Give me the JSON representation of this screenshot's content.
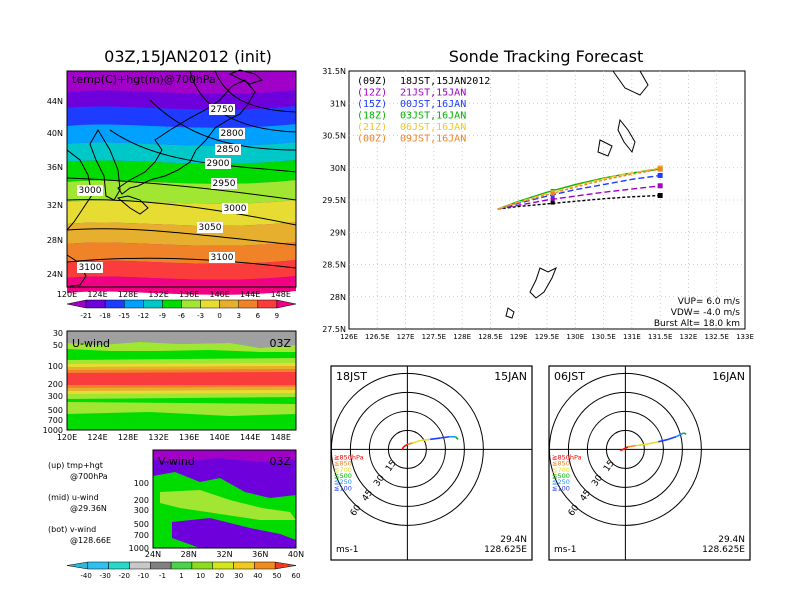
{
  "palette": {
    "temp": [
      "#a000c8",
      "#6e00dc",
      "#1e3cff",
      "#00a0ff",
      "#00c8c8",
      "#00dc00",
      "#a0e632",
      "#e6dc32",
      "#e6af2d",
      "#f08228",
      "#fa3c3c",
      "#f00082"
    ],
    "wind": [
      "#00c8c8",
      "#00dc00",
      "#a0e632",
      "#e6dc32",
      "#e6af2d",
      "#f08228",
      "#fa3c3c"
    ],
    "windcb": [
      "#2cb8d8",
      "#30c0f0",
      "#28d8c8",
      "#c8c8c8",
      "#808080",
      "#4ad24a",
      "#8cdc1e",
      "#d2e61e",
      "#f0c81e",
      "#f08c1e",
      "#f03c1e"
    ]
  },
  "panels": {
    "map": {
      "title": "03Z,15JAN2012 (init)",
      "label": "temp(C)+hgt(m)@700hPa",
      "lat_ticks": [
        "44N",
        "40N",
        "36N",
        "32N",
        "28N",
        "24N"
      ],
      "lon_ticks": [
        "120E",
        "124E",
        "128E",
        "132E",
        "136E",
        "140E",
        "144E",
        "148E"
      ],
      "contours": [
        "2750",
        "2800",
        "2850",
        "2900",
        "2950",
        "3000",
        "3000",
        "3050",
        "3100",
        "3100"
      ],
      "colorbar": [
        "-21",
        "-18",
        "-15",
        "-12",
        "-9",
        "-6",
        "-3",
        "0",
        "3",
        "6",
        "9"
      ]
    },
    "uwind": {
      "label": "U-wind",
      "time": "03Z",
      "levels": [
        "30",
        "50",
        "100",
        "200",
        "300",
        "500",
        "700",
        "1000"
      ],
      "lon_ticks": [
        "120E",
        "124E",
        "128E",
        "132E",
        "136E",
        "140E",
        "144E",
        "148E"
      ]
    },
    "vwind": {
      "label": "V-wind",
      "time": "03Z",
      "levels": [
        "100",
        "200",
        "300",
        "500",
        "700",
        "1000"
      ],
      "lat_ticks": [
        "24N",
        "28N",
        "32N",
        "36N",
        "40N"
      ],
      "colorbar": [
        "-40",
        "-30",
        "-20",
        "-10",
        "-1",
        "1",
        "10",
        "20",
        "30",
        "40",
        "50",
        "60"
      ]
    },
    "notes": {
      "l1": "(up) tmp+hgt",
      "l1b": "@700hPa",
      "l2": "(mid) u-wind",
      "l2b": "@29.36N",
      "l3": "(bot) v-wind",
      "l3b": "@128.66E"
    },
    "track": {
      "title": "Sonde Tracking Forecast",
      "lat_ticks": [
        "31.5N",
        "31N",
        "30.5N",
        "30N",
        "29.5N",
        "29N",
        "28.5N",
        "28N",
        "27.5N"
      ],
      "lon_ticks": [
        "126E",
        "126.5E",
        "127E",
        "127.5E",
        "128E",
        "128.5E",
        "129E",
        "129.5E",
        "130E",
        "130.5E",
        "131E",
        "131.5E",
        "132E",
        "132.5E",
        "133E"
      ],
      "legend": [
        {
          "code": "(09Z)",
          "time": "18JST,15JAN2012",
          "color": "#000000"
        },
        {
          "code": "(12Z)",
          "time": "21JST,15JAN",
          "color": "#a000c8"
        },
        {
          "code": "(15Z)",
          "time": "00JST,16JAN",
          "color": "#1e3cff"
        },
        {
          "code": "(18Z)",
          "time": "03JST,16JAN",
          "color": "#00b400"
        },
        {
          "code": "(21Z)",
          "time": "06JST,16JAN",
          "color": "#f0c828"
        },
        {
          "code": "(00Z)",
          "time": "09JST,16JAN",
          "color": "#f08228"
        }
      ],
      "vup": "VUP= 6.0 m/s",
      "vdw": "VDW= -4.0 m/s",
      "burst": "Burst Alt= 18.0 km"
    },
    "hodo1": {
      "left": "18JST",
      "right": "15JAN",
      "lat": "29.4N",
      "lon": "128.625E",
      "units": "ms-1"
    },
    "hodo2": {
      "left": "06JST",
      "right": "16JAN",
      "lat": "29.4N",
      "lon": "128.625E",
      "units": "ms-1"
    },
    "hodo_legend": [
      "≧850hPa",
      "≦850",
      "≦700",
      "≦500",
      "≦250",
      "≦100"
    ],
    "hodo_legend_colors": [
      "#ff0000",
      "#f08228",
      "#e6dc32",
      "#00b400",
      "#1e90ff",
      "#1e3cff"
    ],
    "hodo_rings": [
      "15",
      "30",
      "45",
      "60"
    ]
  },
  "chart_data": [
    {
      "type": "heatmap",
      "title": "03Z,15JAN2012 (init)",
      "label": "temp(C)+hgt(m)@700hPa",
      "xlim": [
        120,
        150
      ],
      "ylim": [
        22,
        48
      ],
      "height_contours": [
        2750,
        2800,
        2850,
        2900,
        2950,
        3000,
        3050,
        3100
      ],
      "temp_levels": [
        -21,
        -18,
        -15,
        -12,
        -9,
        -6,
        -3,
        0,
        3,
        6,
        9
      ]
    },
    {
      "type": "line",
      "title": "Sonde Tracking Forecast",
      "xlim": [
        126,
        133
      ],
      "ylim": [
        27.5,
        31.5
      ],
      "launch": [
        128.63,
        29.36
      ],
      "series": [
        {
          "name": "(09Z) 18JST,15JAN2012",
          "x": [
            128.63,
            129.0,
            129.5,
            130.0,
            130.5,
            131.0,
            131.5
          ],
          "y": [
            29.36,
            29.4,
            29.44,
            29.48,
            29.52,
            29.55,
            29.57
          ]
        },
        {
          "name": "(12Z) 21JST,15JAN",
          "x": [
            128.63,
            129.0,
            129.5,
            130.0,
            130.5,
            131.0,
            131.5
          ],
          "y": [
            29.36,
            29.42,
            29.5,
            29.56,
            29.62,
            29.67,
            29.72
          ]
        },
        {
          "name": "(15Z) 00JST,16JAN",
          "x": [
            128.63,
            129.0,
            129.5,
            130.0,
            130.5,
            131.0,
            131.5
          ],
          "y": [
            29.36,
            29.45,
            29.56,
            29.66,
            29.74,
            29.82,
            29.88
          ]
        },
        {
          "name": "(18Z) 03JST,16JAN",
          "x": [
            128.63,
            129.0,
            129.5,
            130.0,
            130.5,
            131.0,
            131.5
          ],
          "y": [
            29.36,
            29.48,
            29.62,
            29.74,
            29.84,
            29.92,
            29.98
          ]
        },
        {
          "name": "(21Z) 06JST,16JAN",
          "x": [
            128.63,
            129.0,
            129.5,
            130.0,
            130.5,
            131.0,
            131.5
          ],
          "y": [
            29.36,
            29.47,
            29.6,
            29.72,
            29.83,
            29.92,
            30.0
          ]
        },
        {
          "name": "(00Z) 09JST,16JAN",
          "x": [
            128.63,
            129.0,
            129.5,
            130.0,
            130.5,
            131.0,
            131.5
          ],
          "y": [
            29.36,
            29.46,
            29.58,
            29.7,
            29.81,
            29.9,
            29.98
          ]
        }
      ]
    },
    {
      "type": "line",
      "title": "18JST 15JAN",
      "units": "ms-1",
      "ring_speeds": [
        15,
        30,
        45,
        60
      ],
      "series": [
        {
          "name": "hodograph",
          "u": [
            -4,
            -3,
            0,
            4,
            10,
            18,
            26,
            33,
            38,
            40
          ],
          "v": [
            0,
            2,
            4,
            5,
            7,
            8,
            9,
            10,
            10,
            8
          ]
        }
      ]
    },
    {
      "type": "line",
      "title": "06JST 16JAN",
      "units": "ms-1",
      "ring_speeds": [
        15,
        30,
        45,
        60
      ],
      "series": [
        {
          "name": "hodograph",
          "u": [
            -4,
            -2,
            2,
            8,
            16,
            26,
            34,
            40,
            46,
            48
          ],
          "v": [
            -1,
            0,
            2,
            3,
            4,
            6,
            8,
            10,
            13,
            12
          ]
        }
      ]
    }
  ]
}
